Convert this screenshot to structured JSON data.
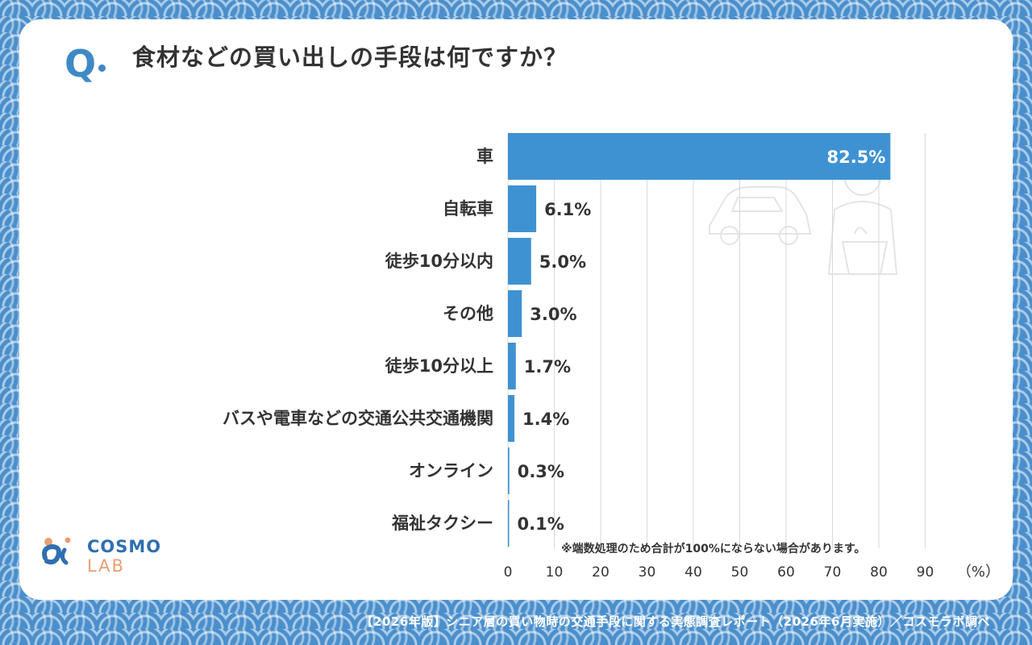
{
  "question": {
    "mark": "Q",
    "text": "食材などの買い出しの手段は何ですか？"
  },
  "note": "※端数処理のため合計が100%にならない場合があります。",
  "footer": "【2026年版】シニア層の買い物時の交通手段に関する実態調査レポート（2026年6月実施）／コスモラボ調べ",
  "logo": {
    "primary": "COSMO",
    "secondary": "LAB"
  },
  "colors": {
    "bar": "#3f92d2",
    "accent": "#3f8ac6",
    "text": "#333333"
  },
  "chart_data": {
    "type": "bar",
    "orientation": "horizontal",
    "categories": [
      "車",
      "自転車",
      "徒歩10分以内",
      "その他",
      "徒歩10分以上",
      "バスや電車などの交通公共交通機関",
      "オンライン",
      "福祉タクシー"
    ],
    "values": [
      82.5,
      6.1,
      5.0,
      3.0,
      1.7,
      1.4,
      0.3,
      0.1
    ],
    "value_labels": [
      "82.5%",
      "6.1%",
      "5.0%",
      "3.0%",
      "1.7%",
      "1.4%",
      "0.3%",
      "0.1%"
    ],
    "xticks": [
      0,
      10,
      20,
      30,
      40,
      50,
      60,
      70,
      80,
      90
    ],
    "xlim": [
      0,
      90
    ],
    "xunit": "（%）",
    "grid": true
  }
}
